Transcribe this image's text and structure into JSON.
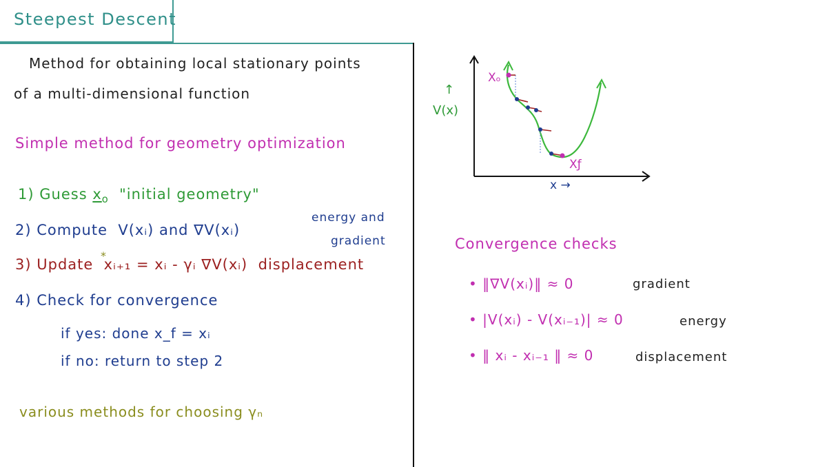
{
  "title": "Steepest Descent",
  "intro": {
    "line1": "Method for obtaining local stationary points",
    "line2": "of a multi-dimensional function"
  },
  "subtitle": "Simple method for geometry optimization",
  "steps": {
    "s1": {
      "num": "1)",
      "text": "Guess",
      "var": "x",
      "sub": "o",
      "note": "\"initial geometry\""
    },
    "s2": {
      "num": "2)",
      "text": "Compute",
      "expr": "V(xᵢ) and ∇V(xᵢ)"
    },
    "s2_note_line1": "energy and",
    "s2_note_line2": "gradient",
    "s3": {
      "num": "3)",
      "text": "Update",
      "expr": "xᵢ₊₁ = xᵢ - γᵢ ∇V(xᵢ)",
      "note": "displacement"
    },
    "s4": {
      "num": "4)",
      "text": "Check for convergence"
    },
    "s4_yes": "if yes: done  x_f = xᵢ",
    "s4_no": "if no: return to step 2"
  },
  "footnote": "various methods for choosing γₙ",
  "graph": {
    "ylabel": "V(x)",
    "y_arrow": "↑",
    "xlabel": "x →",
    "start_label": "Xₒ",
    "end_label": "Xƒ"
  },
  "convergence": {
    "heading": "Convergence checks",
    "items": [
      {
        "expr": "• ‖∇V(xᵢ)‖ ≈ 0",
        "label": "gradient"
      },
      {
        "expr": "• |V(xᵢ) - V(xᵢ₋₁)| ≈ 0",
        "label": "energy"
      },
      {
        "expr": "• ‖ xᵢ - xᵢ₋₁ ‖ ≈ 0",
        "label": "displacement"
      }
    ]
  },
  "colors": {
    "title": "#2f8f89",
    "curve": "#3cb83c",
    "axes": "#111111",
    "arrow_red": "#a02020",
    "points_blue": "#1f3d8f",
    "accent_magenta": "#c12fb0"
  }
}
